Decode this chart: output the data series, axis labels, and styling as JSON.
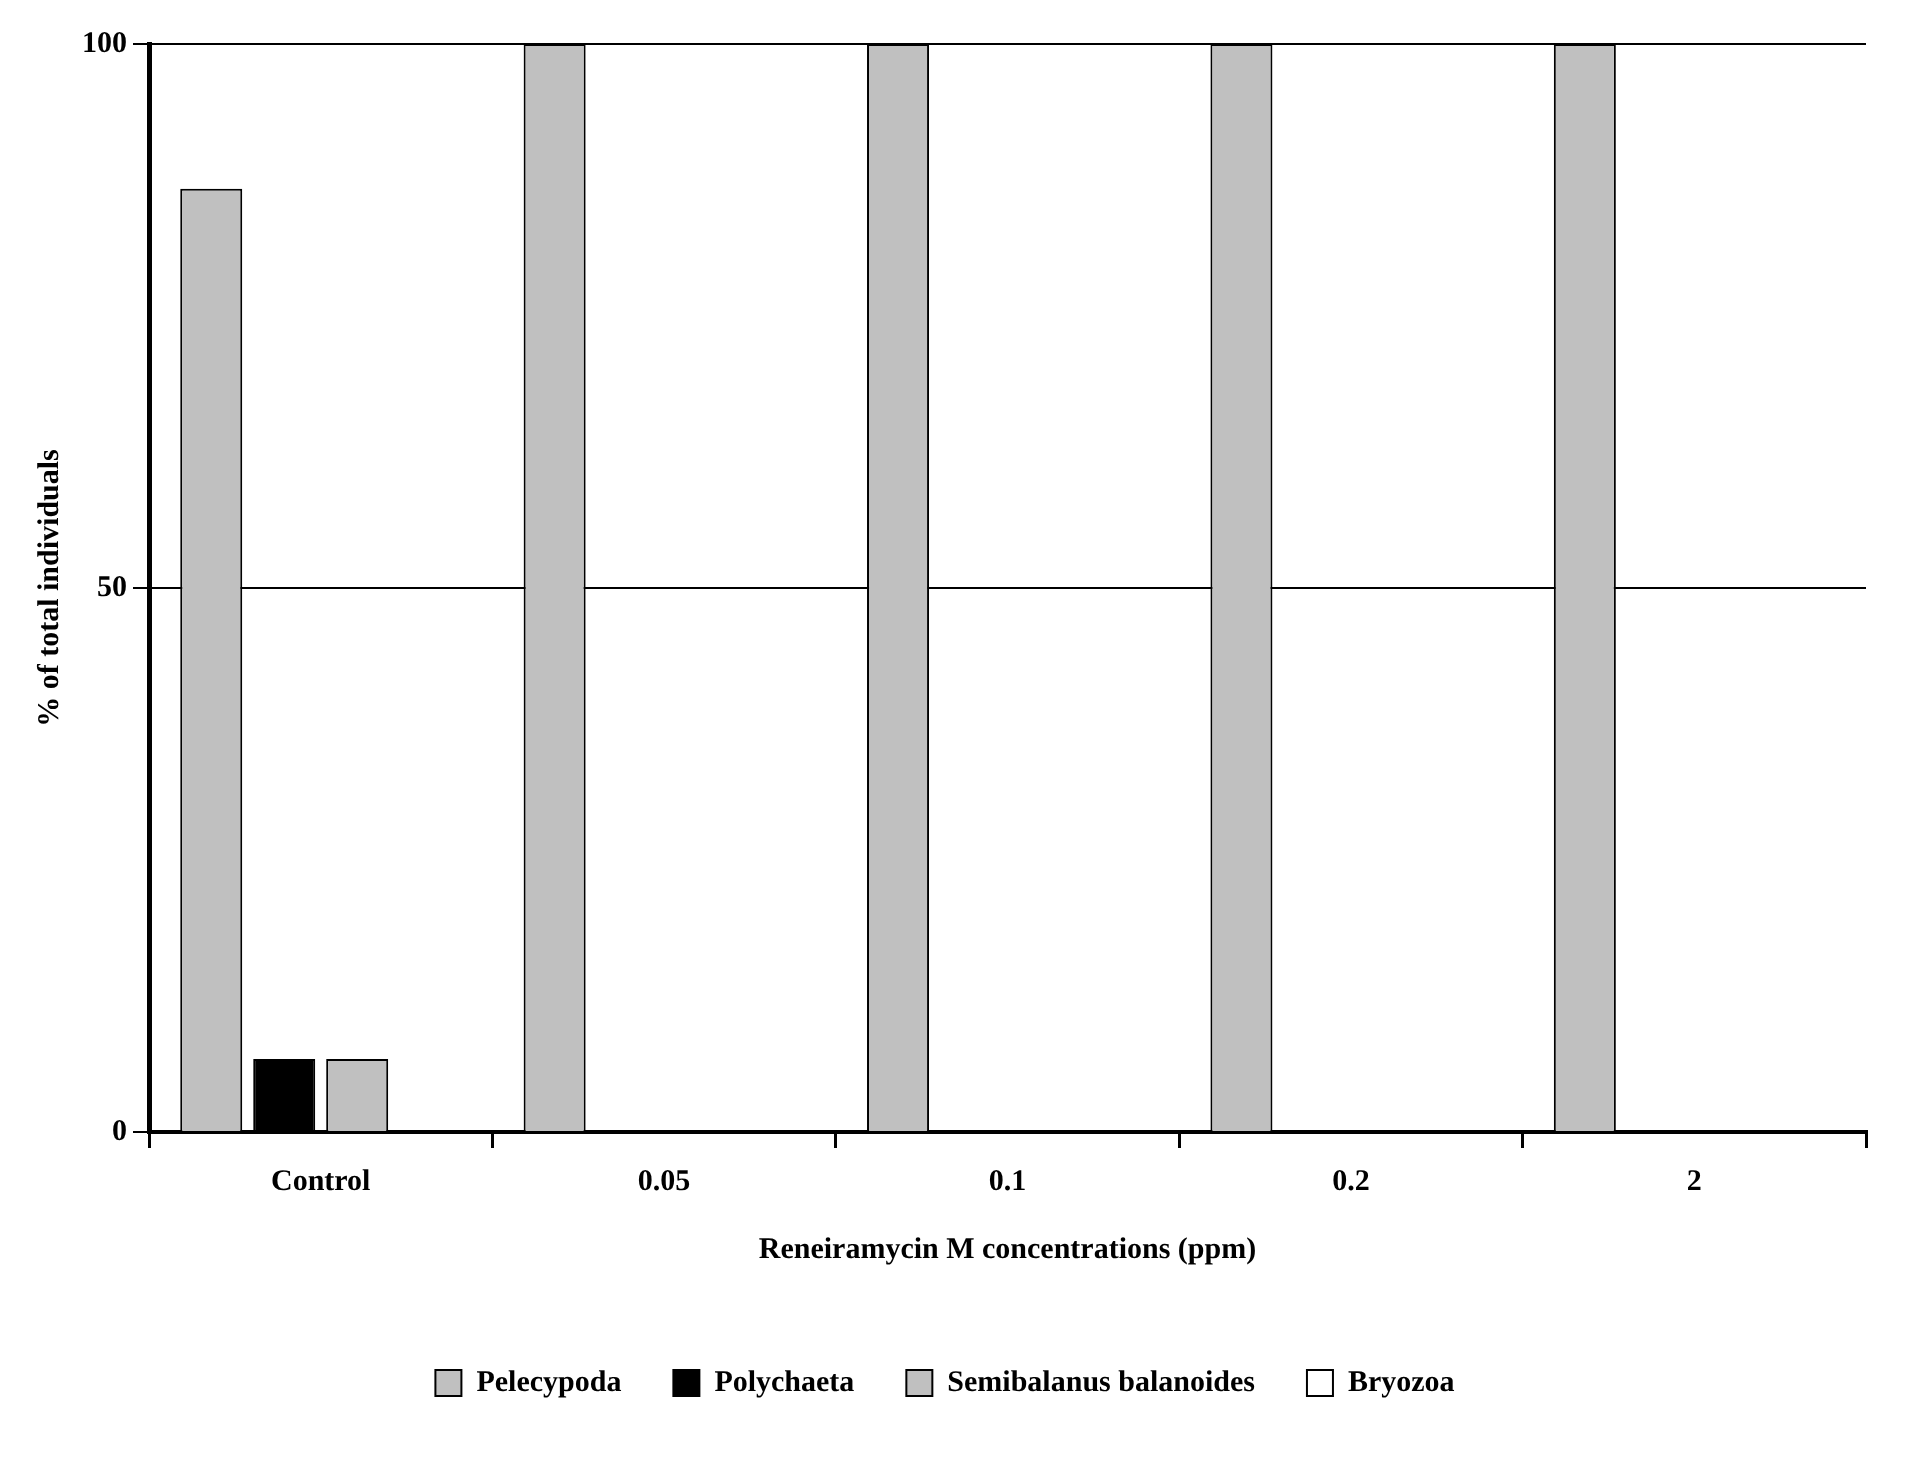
{
  "chart_data": {
    "type": "bar",
    "xlabel": "Reneiramycin M concentrations (ppm)",
    "ylabel": "% of total individuals",
    "categories": [
      "Control",
      "0.05",
      "0.1",
      "0.2",
      "2"
    ],
    "series": [
      {
        "name": "Pelecypoda",
        "color": "#c0c0c0",
        "values": [
          86.7,
          100,
          100,
          100,
          100
        ]
      },
      {
        "name": "Polychaeta",
        "color": "#000000",
        "values": [
          6.7,
          0,
          0,
          0,
          0
        ]
      },
      {
        "name": "Semibalanus balanoides",
        "color": "#c0c0c0",
        "values": [
          6.7,
          0,
          0,
          0,
          0
        ]
      },
      {
        "name": "Bryozoa",
        "color": "#ffffff",
        "values": [
          0,
          0,
          0,
          0,
          0
        ]
      }
    ],
    "ylim": [
      0,
      100
    ],
    "yticks": [
      0,
      50,
      100
    ],
    "grid": "y",
    "legend": "bottom"
  }
}
